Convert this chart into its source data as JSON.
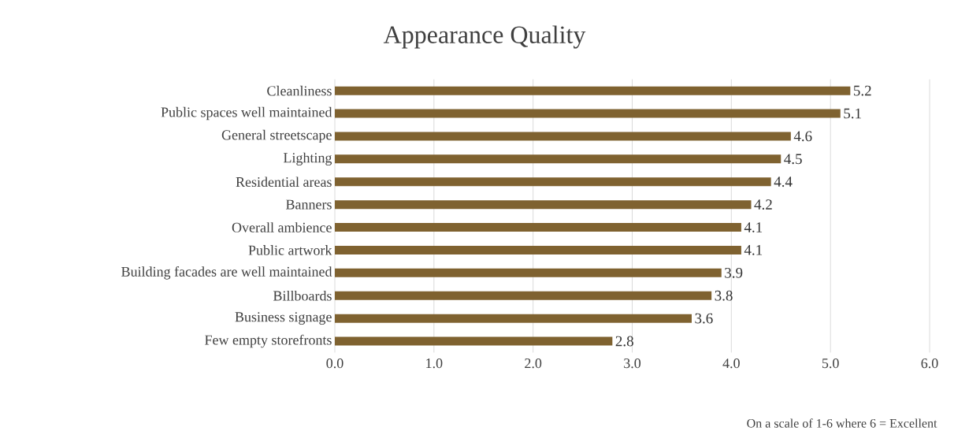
{
  "chart_data": {
    "type": "bar",
    "orientation": "horizontal",
    "title": "Appearance Quality",
    "categories": [
      "Cleanliness",
      "Public spaces well maintained",
      "General streetscape",
      "Lighting",
      "Residential areas",
      "Banners",
      "Overall ambience",
      "Public artwork",
      "Building facades are well maintained",
      "Billboards",
      "Business signage",
      "Few empty storefronts"
    ],
    "values": [
      5.2,
      5.1,
      4.6,
      4.5,
      4.4,
      4.2,
      4.1,
      4.1,
      3.9,
      3.8,
      3.6,
      2.8
    ],
    "color": "#7f6230",
    "xlim": [
      0,
      6
    ],
    "xticks": [
      {
        "value": 0,
        "label": "0.0"
      },
      {
        "value": 1,
        "label": "1.0"
      },
      {
        "value": 2,
        "label": "2.0"
      },
      {
        "value": 3,
        "label": "3.0"
      },
      {
        "value": 4,
        "label": "4.0"
      },
      {
        "value": 5,
        "label": "5.0"
      },
      {
        "value": 6,
        "label": "6.0"
      }
    ],
    "grid": "x",
    "data_labels": true,
    "annotations": [
      "On a scale of 1-6 where 6 = Excellent"
    ]
  }
}
